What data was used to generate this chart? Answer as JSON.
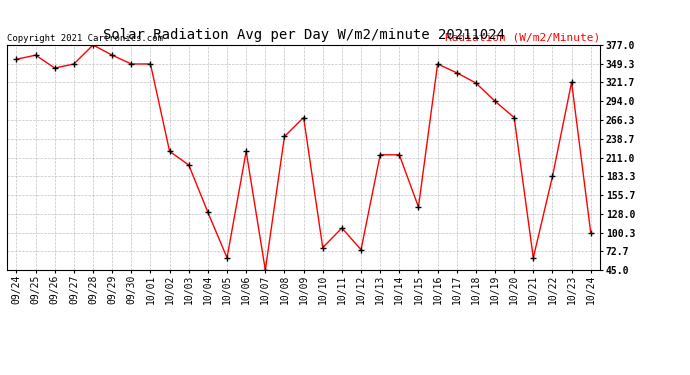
{
  "title": "Solar Radiation Avg per Day W/m2/minute 20211024",
  "copyright_text": "Copyright 2021 Cartronics.com",
  "legend_label": "Radiation (W/m2/Minute)",
  "x_labels": [
    "09/24",
    "09/25",
    "09/26",
    "09/27",
    "09/28",
    "09/29",
    "09/30",
    "10/01",
    "10/02",
    "10/03",
    "10/04",
    "10/05",
    "10/06",
    "10/07",
    "10/08",
    "10/09",
    "10/10",
    "10/11",
    "10/12",
    "10/13",
    "10/14",
    "10/15",
    "10/16",
    "10/17",
    "10/18",
    "10/19",
    "10/20",
    "10/21",
    "10/22",
    "10/23",
    "10/24"
  ],
  "y_values": [
    356.0,
    362.0,
    343.0,
    349.0,
    377.0,
    362.0,
    349.0,
    349.0,
    220.0,
    200.0,
    130.0,
    63.0,
    220.0,
    45.0,
    242.0,
    270.0,
    78.0,
    107.0,
    75.0,
    215.0,
    215.0,
    138.0,
    349.0,
    336.0,
    321.0,
    294.0,
    270.0,
    63.0,
    183.0,
    322.0,
    100.0
  ],
  "y_min": 45.0,
  "y_max": 377.0,
  "y_ticks": [
    45.0,
    72.7,
    100.3,
    128.0,
    155.7,
    183.3,
    211.0,
    238.7,
    266.3,
    294.0,
    321.7,
    349.3,
    377.0
  ],
  "line_color": "red",
  "marker_color": "black",
  "background_color": "#ffffff",
  "grid_color": "#aaaaaa",
  "title_fontsize": 10,
  "copyright_fontsize": 6.5,
  "legend_fontsize": 8,
  "tick_fontsize": 7
}
